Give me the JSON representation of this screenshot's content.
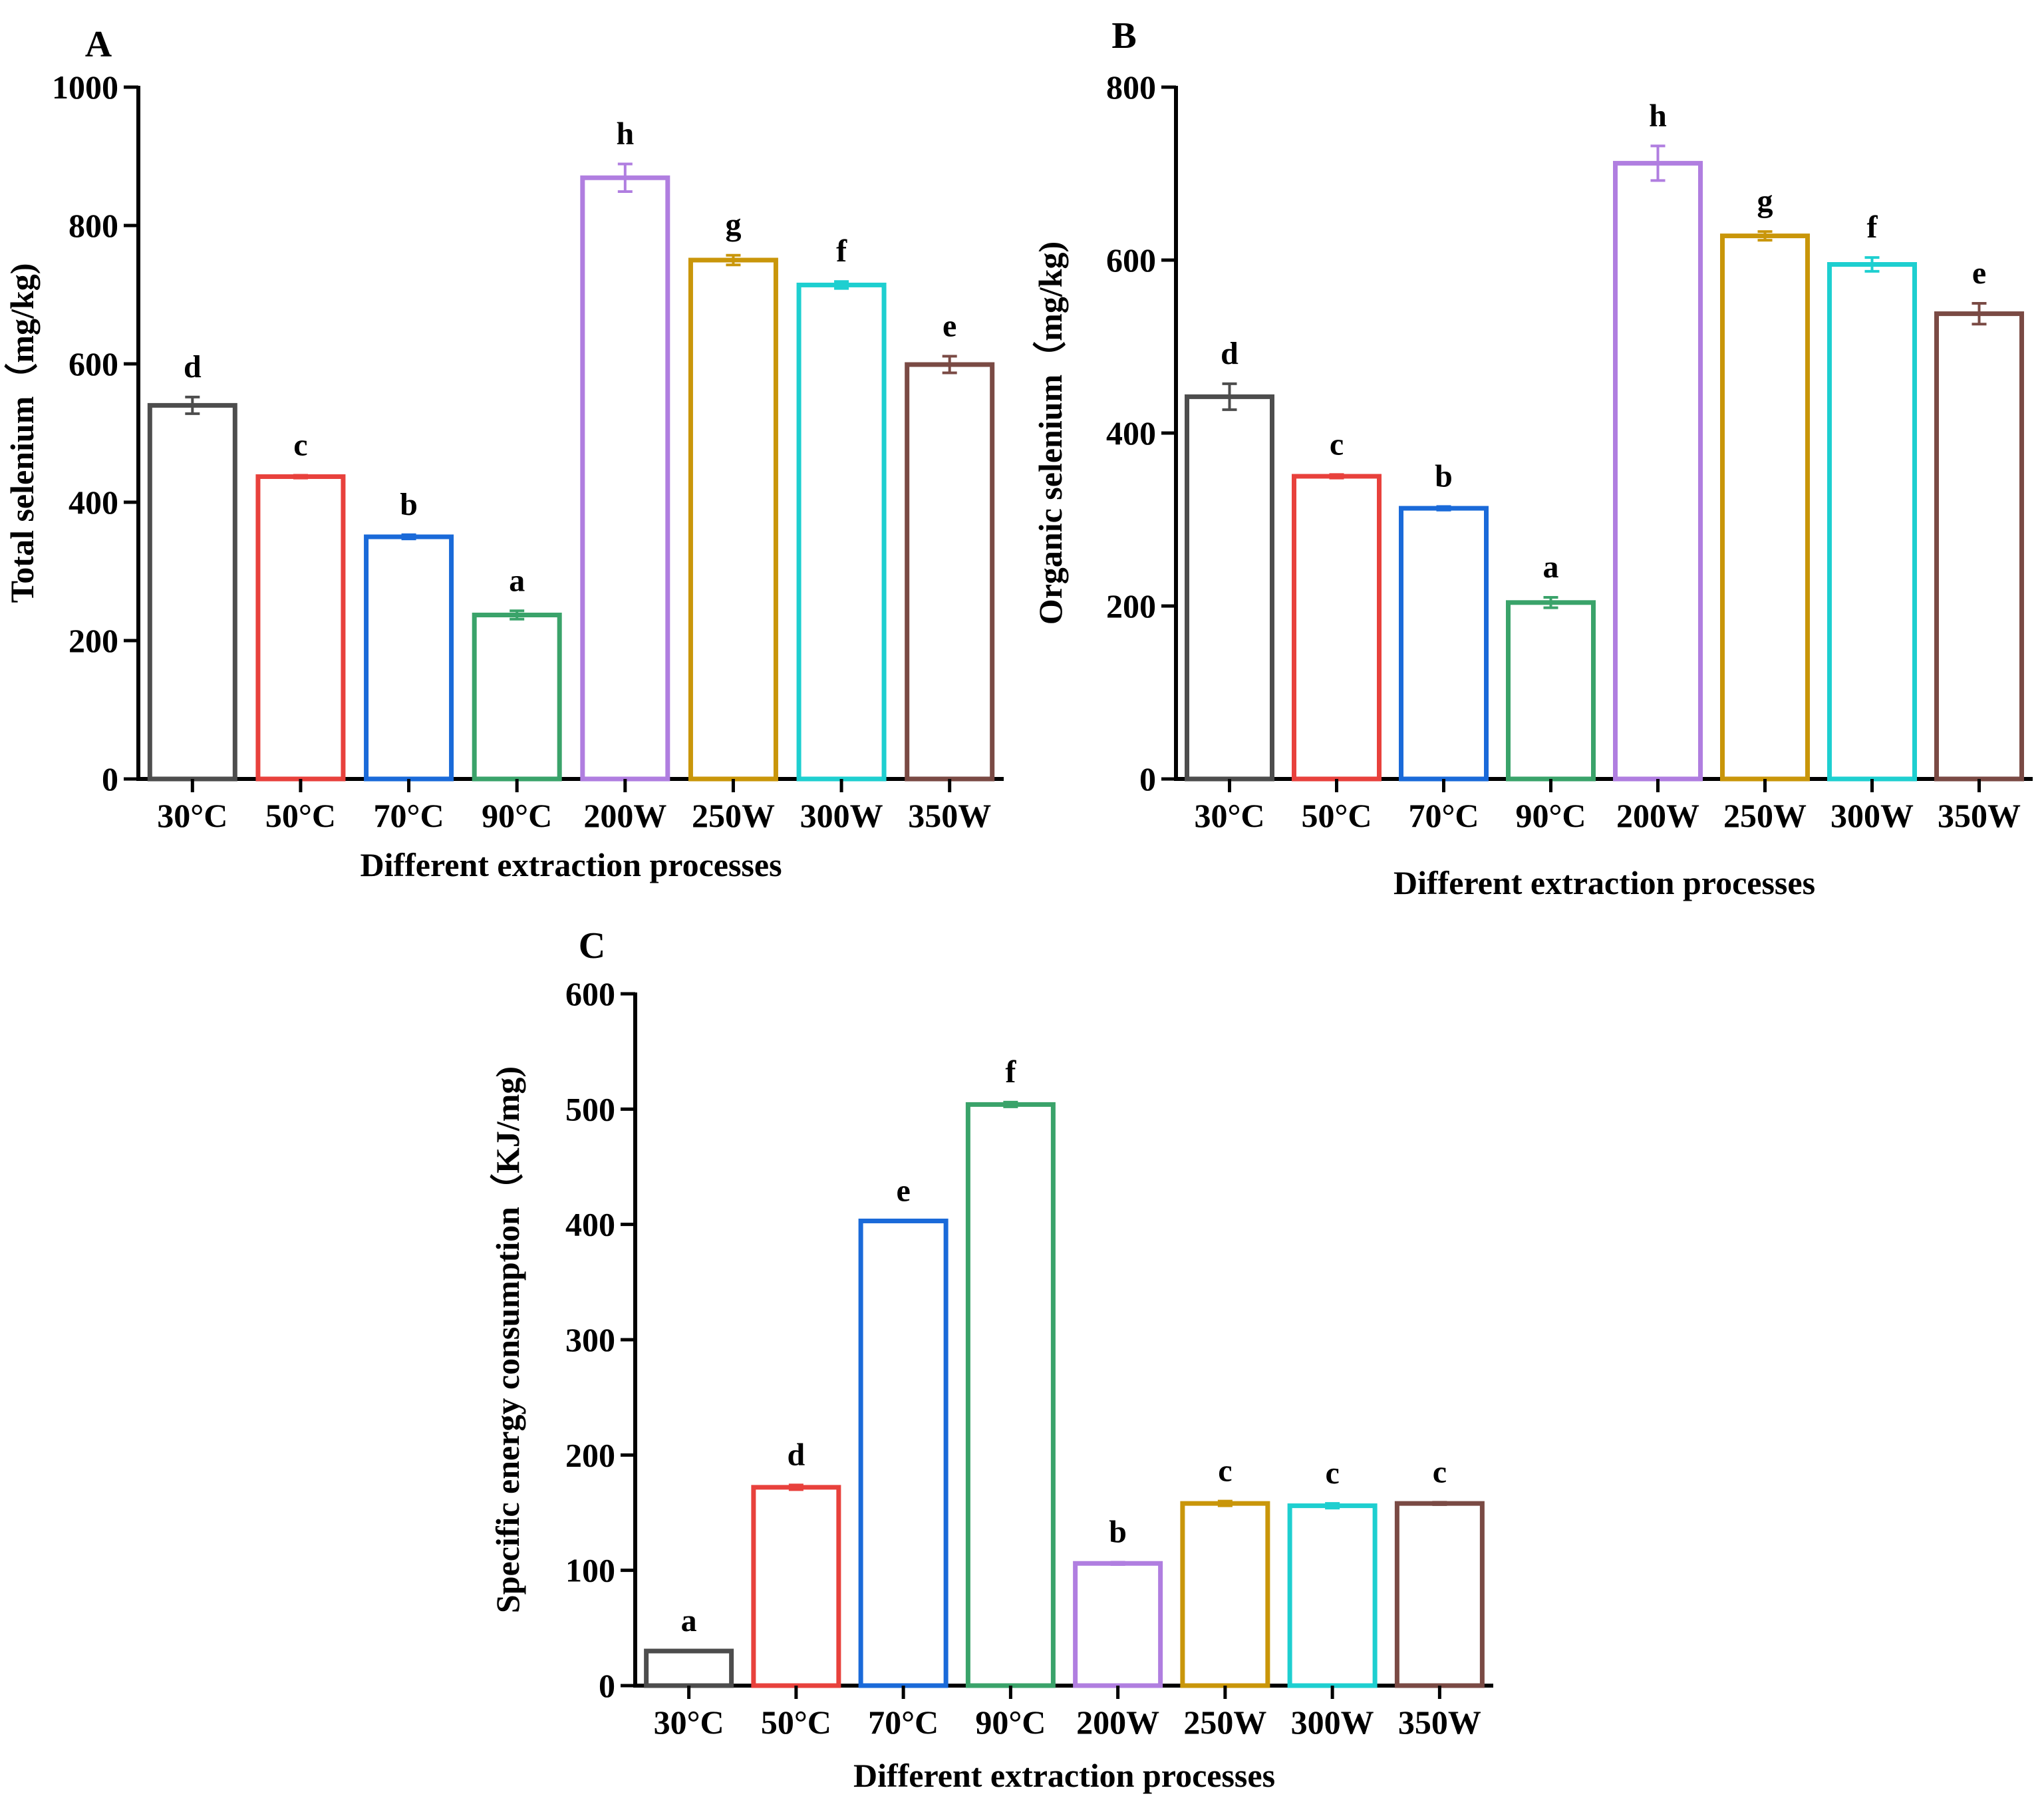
{
  "chart_data": [
    {
      "panel": "A",
      "type": "bar",
      "categories": [
        "30°C",
        "50°C",
        "70°C",
        "90°C",
        "200W",
        "250W",
        "300W",
        "350W"
      ],
      "values": [
        540,
        437,
        350,
        237,
        869,
        750,
        714,
        599
      ],
      "errors": [
        12,
        2,
        3,
        6,
        20,
        7,
        5,
        12
      ],
      "letters": [
        "d",
        "c",
        "b",
        "a",
        "h",
        "g",
        "f",
        "e"
      ],
      "colors": [
        "#4d4d4d",
        "#e8413c",
        "#1a6ad9",
        "#3aa36a",
        "#b07ee0",
        "#c9960a",
        "#1ecfd0",
        "#7a4a44"
      ],
      "ylim": [
        0,
        1000
      ],
      "yticks": [
        "0",
        "200",
        "400",
        "600",
        "800",
        "1000"
      ],
      "xlabel": "Different extraction processes",
      "ylabel": "Total selenium（mg/kg)"
    },
    {
      "panel": "B",
      "type": "bar",
      "categories": [
        "30°C",
        "50°C",
        "70°C",
        "90°C",
        "200W",
        "250W",
        "300W",
        "350W"
      ],
      "values": [
        442,
        350,
        313,
        204,
        712,
        628,
        595,
        538
      ],
      "errors": [
        15,
        2,
        2,
        6,
        20,
        5,
        8,
        12
      ],
      "letters": [
        "d",
        "c",
        "b",
        "a",
        "h",
        "g",
        "f",
        "e"
      ],
      "colors": [
        "#4d4d4d",
        "#e8413c",
        "#1a6ad9",
        "#3aa36a",
        "#b07ee0",
        "#c9960a",
        "#1ecfd0",
        "#7a4a44"
      ],
      "ylim": [
        0,
        800
      ],
      "yticks": [
        "0",
        "200",
        "400",
        "600",
        "800"
      ],
      "xlabel": "Different extraction processes",
      "ylabel": "Organic selenium（mg/kg)"
    },
    {
      "panel": "C",
      "type": "bar",
      "categories": [
        "30°C",
        "50°C",
        "70°C",
        "90°C",
        "200W",
        "250W",
        "300W",
        "350W"
      ],
      "values": [
        30,
        172,
        403,
        504,
        106,
        158,
        156,
        158
      ],
      "errors": [
        0,
        2,
        0,
        2,
        1,
        2,
        2,
        1
      ],
      "letters": [
        "a",
        "d",
        "e",
        "f",
        "b",
        "c",
        "c",
        "c"
      ],
      "colors": [
        "#4d4d4d",
        "#e8413c",
        "#1a6ad9",
        "#3aa36a",
        "#b07ee0",
        "#c9960a",
        "#1ecfd0",
        "#7a4a44"
      ],
      "ylim": [
        0,
        600
      ],
      "yticks": [
        "0",
        "100",
        "200",
        "300",
        "400",
        "500",
        "600"
      ],
      "xlabel": "Different extraction processes",
      "ylabel": "Specific energy consumption（KJ/mg)"
    }
  ]
}
